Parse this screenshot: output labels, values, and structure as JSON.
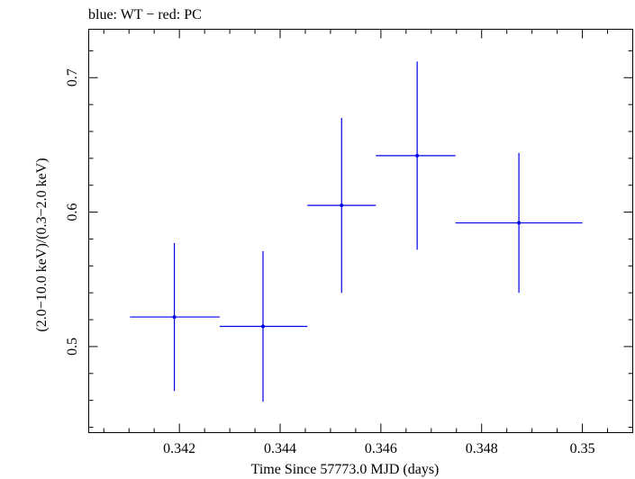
{
  "chart_data": {
    "type": "scatter",
    "title": "blue: WT − red: PC",
    "xlabel": "Time Since 57773.0 MJD (days)",
    "ylabel": "(2.0−10.0 keV)/(0.3−2.0 keV)",
    "xlim": [
      0.3402,
      0.351
    ],
    "ylim": [
      0.436,
      0.736
    ],
    "x_ticks": [
      0.342,
      0.344,
      0.346,
      0.348,
      0.35
    ],
    "x_tick_labels": [
      "0.342",
      "0.344",
      "0.346",
      "0.348",
      "0.35"
    ],
    "y_ticks": [
      0.5,
      0.6,
      0.7
    ],
    "y_tick_labels": [
      "0.5",
      "0.6",
      "0.7"
    ],
    "grid": false,
    "series": [
      {
        "color": "#0000ee",
        "points": [
          {
            "x": 0.3419,
            "xerr_lo": 0.00088,
            "xerr_hi": 0.0009,
            "y": 0.522,
            "yerr_lo": 0.055,
            "yerr_hi": 0.055
          },
          {
            "x": 0.34366,
            "xerr_lo": 0.00086,
            "xerr_hi": 0.00088,
            "y": 0.515,
            "yerr_lo": 0.056,
            "yerr_hi": 0.056
          },
          {
            "x": 0.34522,
            "xerr_lo": 0.00068,
            "xerr_hi": 0.00068,
            "y": 0.605,
            "yerr_lo": 0.065,
            "yerr_hi": 0.065
          },
          {
            "x": 0.34672,
            "xerr_lo": 0.00082,
            "xerr_hi": 0.00076,
            "y": 0.642,
            "yerr_lo": 0.07,
            "yerr_hi": 0.07
          },
          {
            "x": 0.34874,
            "xerr_lo": 0.00126,
            "xerr_hi": 0.00126,
            "y": 0.592,
            "yerr_lo": 0.052,
            "yerr_hi": 0.052
          }
        ]
      }
    ]
  }
}
